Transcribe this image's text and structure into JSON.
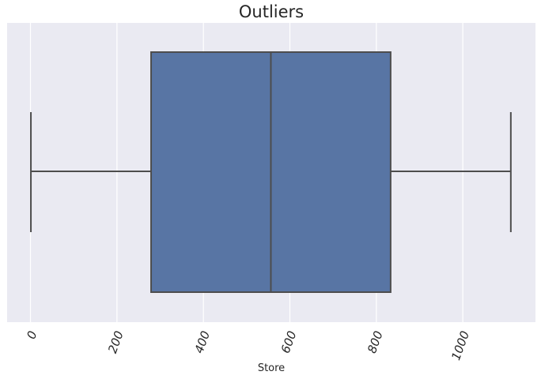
{
  "chart_data": {
    "type": "box",
    "orientation": "horizontal",
    "title": "Outliers",
    "xlabel": "Store",
    "ylabel": "",
    "xlim": [
      -54,
      1168
    ],
    "xticks": [
      0,
      200,
      400,
      600,
      800,
      1000
    ],
    "xtick_labels": [
      "0",
      "200",
      "400",
      "600",
      "800",
      "1000"
    ],
    "tick_label_rotation": -70,
    "grid": true,
    "box": {
      "min": 1,
      "q1": 279,
      "median": 556,
      "q3": 833,
      "max": 1111
    },
    "colors": {
      "box_fill": "#5875a4",
      "line": "#4d4d4d",
      "background": "#eaeaf2",
      "grid": "#ffffff"
    }
  }
}
